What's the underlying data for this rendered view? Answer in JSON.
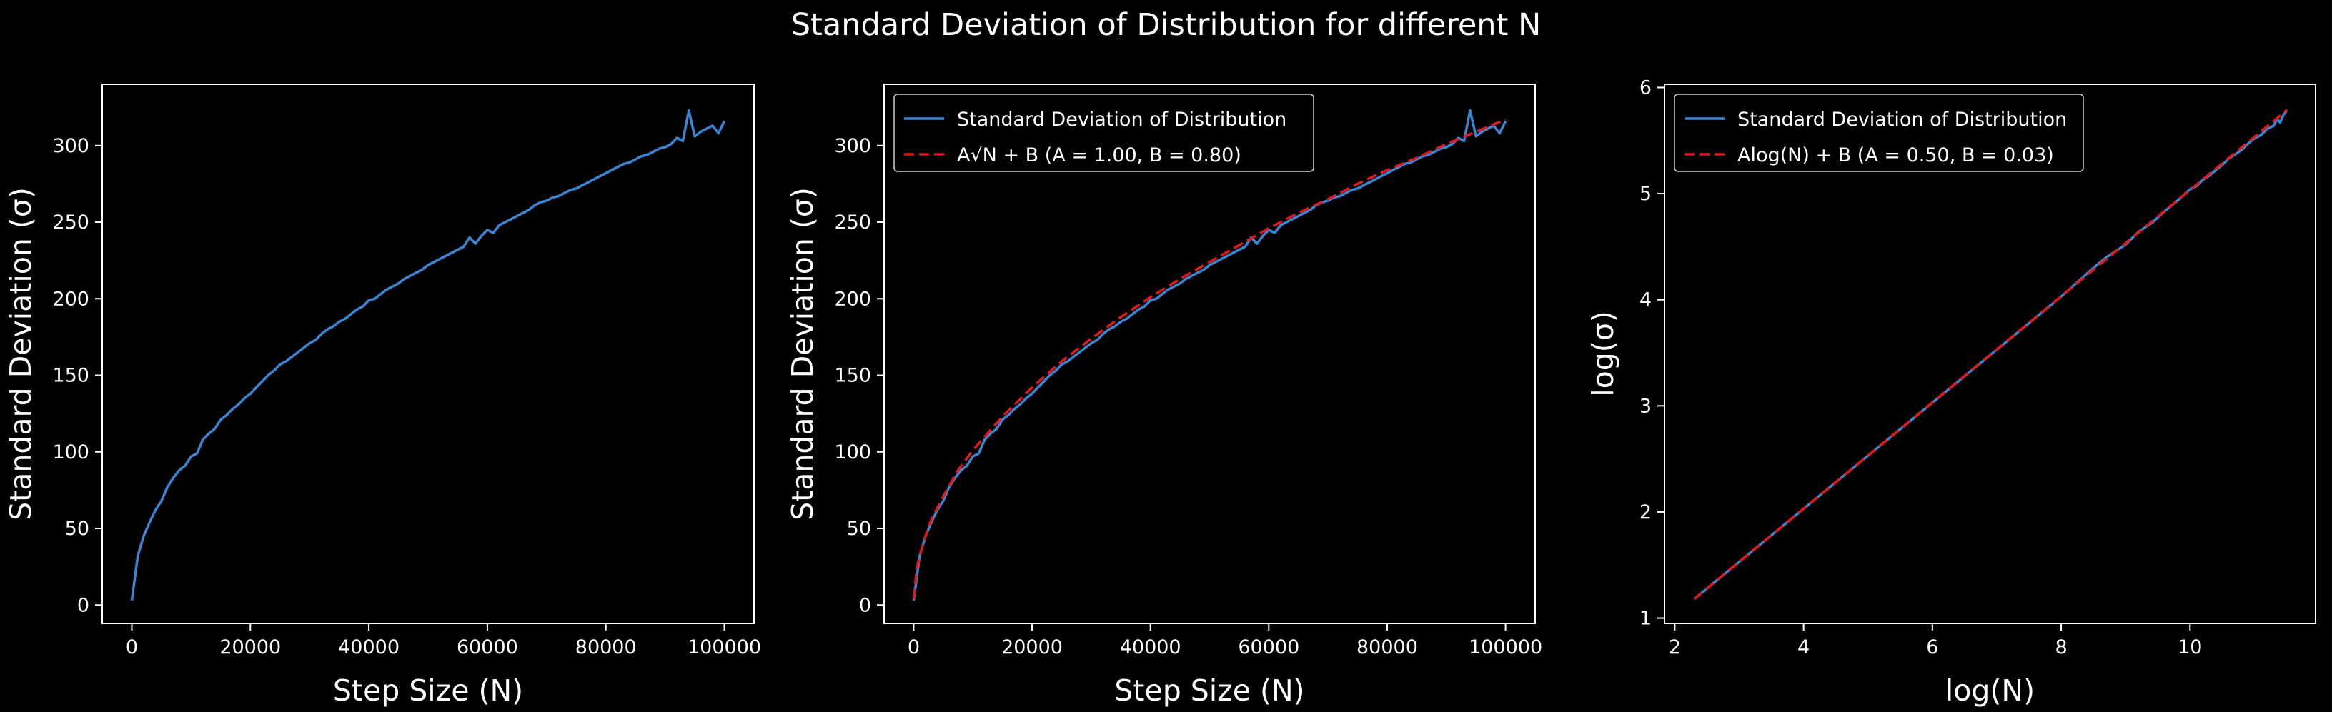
{
  "figure": {
    "title": "Standard Deviation of Distribution for different N",
    "background": "#000000",
    "colors": {
      "data": "#3a86d4",
      "fit": "#e0191f",
      "axes": "#ffffff"
    }
  },
  "chart_data": [
    {
      "type": "line",
      "xlabel": "Step Size (N)",
      "ylabel": "Standard Deviation (σ)",
      "xlim": [
        -5000,
        105000
      ],
      "ylim": [
        -12,
        340
      ],
      "xticks": [
        0,
        20000,
        40000,
        60000,
        80000,
        100000
      ],
      "xticklabels": [
        "0",
        "20000",
        "40000",
        "60000",
        "80000",
        "100000"
      ],
      "yticks": [
        0,
        50,
        100,
        150,
        200,
        250,
        300
      ],
      "yticklabels": [
        "0",
        "50",
        "100",
        "150",
        "200",
        "250",
        "300"
      ],
      "legend": null,
      "series": [
        {
          "role": "data",
          "color": "#3a86d4",
          "x": [
            10,
            1000,
            2000,
            3000,
            4000,
            5000,
            6000,
            7000,
            8000,
            9000,
            10000,
            11000,
            12000,
            13000,
            14000,
            15000,
            16000,
            17000,
            18000,
            19000,
            20000,
            21000,
            22000,
            23000,
            24000,
            25000,
            26000,
            27000,
            28000,
            29000,
            30000,
            31000,
            32000,
            33000,
            34000,
            35000,
            36000,
            37000,
            38000,
            39000,
            40000,
            41000,
            42000,
            43000,
            44000,
            45000,
            46000,
            47000,
            48000,
            49000,
            50000,
            51000,
            52000,
            53000,
            54000,
            55000,
            56000,
            57000,
            58000,
            59000,
            60000,
            61000,
            62000,
            63000,
            64000,
            65000,
            66000,
            67000,
            68000,
            69000,
            70000,
            71000,
            72000,
            73000,
            74000,
            75000,
            76000,
            77000,
            78000,
            79000,
            80000,
            81000,
            82000,
            83000,
            84000,
            85000,
            86000,
            87000,
            88000,
            89000,
            90000,
            91000,
            92000,
            93000,
            94000,
            95000,
            96000,
            97000,
            98000,
            99000,
            100000
          ],
          "y": [
            3,
            32,
            45,
            54,
            62,
            68,
            77,
            83,
            88,
            91,
            97,
            99,
            108,
            112,
            115,
            121,
            124,
            128,
            131,
            135,
            138,
            142,
            146,
            150,
            153,
            157,
            159,
            162,
            165,
            168,
            171,
            173,
            177,
            180,
            182,
            185,
            187,
            190,
            193,
            195,
            199,
            200,
            203,
            206,
            208,
            210,
            213,
            215,
            217,
            219,
            222,
            224,
            226,
            228,
            230,
            232,
            234,
            240,
            236,
            241,
            245,
            243,
            248,
            250,
            252,
            254,
            256,
            258,
            261,
            263,
            264,
            266,
            267,
            269,
            271,
            272,
            274,
            276,
            278,
            280,
            282,
            284,
            286,
            288,
            289,
            291,
            293,
            294,
            296,
            298,
            299,
            301,
            305,
            303,
            323,
            306,
            309,
            311,
            313,
            308,
            316
          ]
        }
      ]
    },
    {
      "type": "line",
      "xlabel": "Step Size (N)",
      "ylabel": "Standard Deviation (σ)",
      "xlim": [
        -5000,
        105000
      ],
      "ylim": [
        -12,
        340
      ],
      "xticks": [
        0,
        20000,
        40000,
        60000,
        80000,
        100000
      ],
      "xticklabels": [
        "0",
        "20000",
        "40000",
        "60000",
        "80000",
        "100000"
      ],
      "yticks": [
        0,
        50,
        100,
        150,
        200,
        250,
        300
      ],
      "yticklabels": [
        "0",
        "50",
        "100",
        "150",
        "200",
        "250",
        "300"
      ],
      "legend": {
        "placement": "upper-left",
        "entries": [
          "Standard Deviation of Distribution",
          "A√N + B (A = 1.00, B = 0.80)"
        ]
      },
      "series": [
        {
          "role": "data",
          "name": "Standard Deviation of Distribution",
          "color": "#3a86d4",
          "dash": false,
          "x": [
            10,
            1000,
            2000,
            3000,
            4000,
            5000,
            6000,
            7000,
            8000,
            9000,
            10000,
            11000,
            12000,
            13000,
            14000,
            15000,
            16000,
            17000,
            18000,
            19000,
            20000,
            21000,
            22000,
            23000,
            24000,
            25000,
            26000,
            27000,
            28000,
            29000,
            30000,
            31000,
            32000,
            33000,
            34000,
            35000,
            36000,
            37000,
            38000,
            39000,
            40000,
            41000,
            42000,
            43000,
            44000,
            45000,
            46000,
            47000,
            48000,
            49000,
            50000,
            51000,
            52000,
            53000,
            54000,
            55000,
            56000,
            57000,
            58000,
            59000,
            60000,
            61000,
            62000,
            63000,
            64000,
            65000,
            66000,
            67000,
            68000,
            69000,
            70000,
            71000,
            72000,
            73000,
            74000,
            75000,
            76000,
            77000,
            78000,
            79000,
            80000,
            81000,
            82000,
            83000,
            84000,
            85000,
            86000,
            87000,
            88000,
            89000,
            90000,
            91000,
            92000,
            93000,
            94000,
            95000,
            96000,
            97000,
            98000,
            99000,
            100000
          ],
          "y": [
            3,
            32,
            45,
            54,
            62,
            68,
            77,
            83,
            88,
            91,
            97,
            99,
            108,
            112,
            115,
            121,
            124,
            128,
            131,
            135,
            138,
            142,
            146,
            150,
            153,
            157,
            159,
            162,
            165,
            168,
            171,
            173,
            177,
            180,
            182,
            185,
            187,
            190,
            193,
            195,
            199,
            200,
            203,
            206,
            208,
            210,
            213,
            215,
            217,
            219,
            222,
            224,
            226,
            228,
            230,
            232,
            234,
            240,
            236,
            241,
            245,
            243,
            248,
            250,
            252,
            254,
            256,
            258,
            261,
            263,
            264,
            266,
            267,
            269,
            271,
            272,
            274,
            276,
            278,
            280,
            282,
            284,
            286,
            288,
            289,
            291,
            293,
            294,
            296,
            298,
            299,
            301,
            305,
            303,
            323,
            306,
            309,
            311,
            313,
            308,
            316
          ]
        },
        {
          "role": "fit",
          "name": "A√N + B (A = 1.00, B = 0.80)",
          "color": "#e0191f",
          "dash": true,
          "x": [
            10,
            500,
            1000,
            2000,
            3000,
            5000,
            7500,
            10000,
            15000,
            20000,
            25000,
            30000,
            35000,
            40000,
            45000,
            50000,
            55000,
            60000,
            65000,
            70000,
            75000,
            80000,
            85000,
            90000,
            95000,
            100000
          ],
          "y": [
            4,
            23,
            32,
            45,
            56,
            71,
            88,
            101,
            123,
            142,
            159,
            174,
            188,
            201,
            213,
            224,
            235,
            246,
            256,
            265,
            275,
            284,
            292,
            301,
            309,
            317
          ]
        }
      ]
    },
    {
      "type": "line",
      "xlabel": "log(N)",
      "ylabel": "log(σ)",
      "xlim": [
        1.84,
        11.95
      ],
      "ylim": [
        0.95,
        6.03
      ],
      "xticks": [
        2,
        4,
        6,
        8,
        10
      ],
      "xticklabels": [
        "2",
        "4",
        "6",
        "8",
        "10"
      ],
      "yticks": [
        1,
        2,
        3,
        4,
        5,
        6
      ],
      "yticklabels": [
        "1",
        "2",
        "3",
        "4",
        "5",
        "6"
      ],
      "legend": {
        "placement": "upper-left",
        "entries": [
          "Standard Deviation of Distribution",
          "Alog(N) + B (A = 0.50, B = 0.03)"
        ]
      },
      "series": [
        {
          "role": "data",
          "name": "Standard Deviation of Distribution",
          "color": "#3a86d4",
          "dash": false,
          "x": [
            2.3,
            3.0,
            4.0,
            5.0,
            6.0,
            7.0,
            8.0,
            8.5,
            8.7,
            9.0,
            9.2,
            9.4,
            9.6,
            9.8,
            10.0,
            10.1,
            10.2,
            10.3,
            10.4,
            10.5,
            10.6,
            10.7,
            10.8,
            10.9,
            11.0,
            11.1,
            11.2,
            11.3,
            11.35,
            11.4,
            11.45,
            11.5
          ],
          "y": [
            1.18,
            1.53,
            2.03,
            2.53,
            3.03,
            3.53,
            4.03,
            4.3,
            4.4,
            4.52,
            4.64,
            4.72,
            4.83,
            4.93,
            5.04,
            5.07,
            5.13,
            5.17,
            5.22,
            5.27,
            5.33,
            5.37,
            5.41,
            5.47,
            5.52,
            5.55,
            5.61,
            5.64,
            5.7,
            5.67,
            5.74,
            5.78
          ]
        },
        {
          "role": "fit",
          "name": "Alog(N) + B (A = 0.50, B = 0.03)",
          "color": "#e0191f",
          "dash": true,
          "x": [
            2.3,
            11.51
          ],
          "y": [
            1.18,
            5.79
          ]
        }
      ]
    }
  ]
}
